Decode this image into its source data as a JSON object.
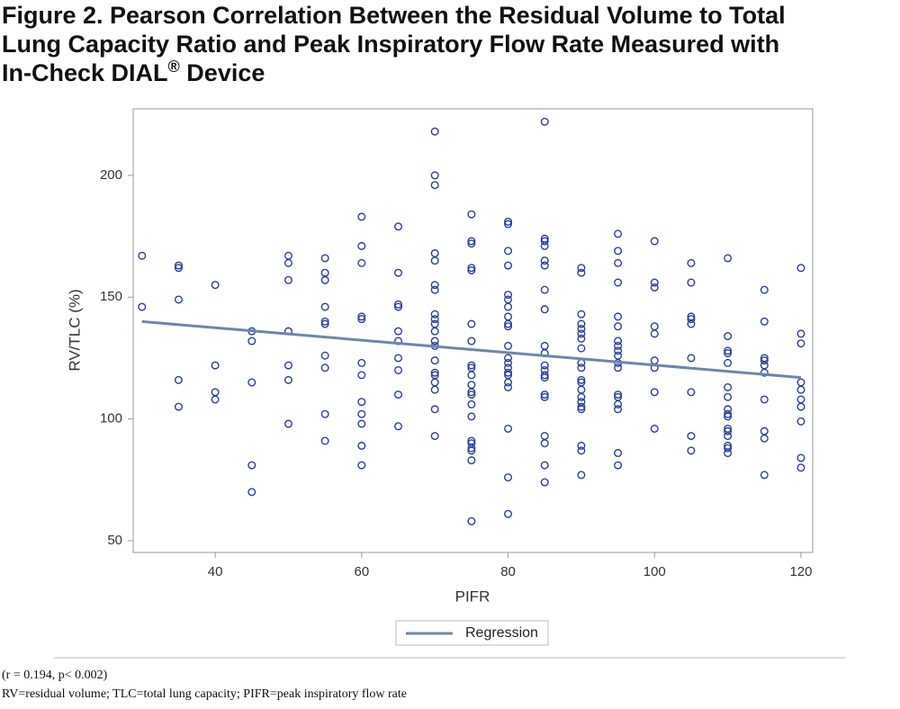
{
  "chart_data": {
    "type": "scatter",
    "title_lines": [
      "Figure 2. Pearson Correlation Between the Residual Volume to Total",
      "Lung Capacity Ratio and Peak Inspiratory Flow Rate Measured with",
      "In-Check DIAL"
    ],
    "title_sup": "®",
    "title_tail": " Device",
    "x_label": "PIFR",
    "y_label": "RV/TLC (%)",
    "xlim": [
      28.8,
      121.6
    ],
    "ylim": [
      45.2,
      227.3
    ],
    "xticks": [
      40,
      60,
      80,
      100,
      120
    ],
    "yticks": [
      50,
      100,
      150,
      200
    ],
    "marker_color": "#2a3f9a",
    "points": [
      {
        "x": 30,
        "y": [
          167,
          146
        ]
      },
      {
        "x": 35,
        "y": [
          163,
          162,
          149,
          116,
          105
        ]
      },
      {
        "x": 40,
        "y": [
          155,
          122,
          111,
          108
        ]
      },
      {
        "x": 45,
        "y": [
          136,
          132,
          115,
          81,
          70
        ]
      },
      {
        "x": 50,
        "y": [
          167,
          164,
          157,
          136,
          122,
          116,
          98
        ]
      },
      {
        "x": 55,
        "y": [
          166,
          160,
          157,
          146,
          140,
          139,
          126,
          121,
          102,
          91
        ]
      },
      {
        "x": 60,
        "y": [
          183,
          171,
          164,
          142,
          141,
          123,
          118,
          107,
          102,
          98,
          89,
          81
        ]
      },
      {
        "x": 65,
        "y": [
          179,
          160,
          147,
          146,
          136,
          132,
          125,
          120,
          110,
          97
        ]
      },
      {
        "x": 70,
        "y": [
          218,
          200,
          196,
          168,
          165,
          155,
          153,
          143,
          141,
          139,
          136,
          132,
          130,
          124,
          119,
          118,
          115,
          112,
          104,
          93
        ]
      },
      {
        "x": 75,
        "y": [
          184,
          173,
          172,
          162,
          161,
          139,
          132,
          122,
          121,
          118,
          114,
          111,
          110,
          106,
          101,
          91,
          90,
          88,
          87,
          83,
          58
        ]
      },
      {
        "x": 80,
        "y": [
          181,
          180,
          169,
          163,
          151,
          149,
          146,
          142,
          139,
          138,
          130,
          125,
          123,
          121,
          119,
          118,
          115,
          113,
          96,
          76,
          61
        ]
      },
      {
        "x": 85,
        "y": [
          222,
          174,
          173,
          171,
          165,
          163,
          153,
          145,
          130,
          127,
          122,
          120,
          118,
          117,
          110,
          109,
          93,
          90,
          81,
          74
        ]
      },
      {
        "x": 90,
        "y": [
          162,
          160,
          143,
          139,
          137,
          135,
          133,
          129,
          123,
          121,
          116,
          115,
          112,
          109,
          107,
          105,
          104,
          89,
          87,
          77
        ]
      },
      {
        "x": 95,
        "y": [
          176,
          169,
          164,
          156,
          142,
          138,
          132,
          130,
          128,
          126,
          123,
          121,
          110,
          109,
          106,
          104,
          86,
          81
        ]
      },
      {
        "x": 100,
        "y": [
          173,
          156,
          154,
          138,
          135,
          124,
          121,
          111,
          96
        ]
      },
      {
        "x": 105,
        "y": [
          164,
          156,
          142,
          141,
          139,
          125,
          111,
          93,
          87
        ]
      },
      {
        "x": 110,
        "y": [
          166,
          134,
          128,
          127,
          123,
          113,
          109,
          104,
          102,
          101,
          96,
          95,
          93,
          89,
          88,
          86
        ]
      },
      {
        "x": 115,
        "y": [
          153,
          140,
          125,
          124,
          122,
          119,
          108,
          95,
          92,
          77
        ]
      },
      {
        "x": 120,
        "y": [
          162,
          135,
          131,
          115,
          112,
          108,
          105,
          99,
          84,
          80
        ]
      }
    ],
    "regression": {
      "name": "Regression",
      "color": "#6d87a8",
      "x": [
        30,
        120
      ],
      "y": [
        140,
        117
      ]
    },
    "notes": [
      "(r = 0.194, p< 0.002)",
      "RV=residual volume; TLC=total lung capacity; PIFR=peak inspiratory flow rate"
    ]
  }
}
